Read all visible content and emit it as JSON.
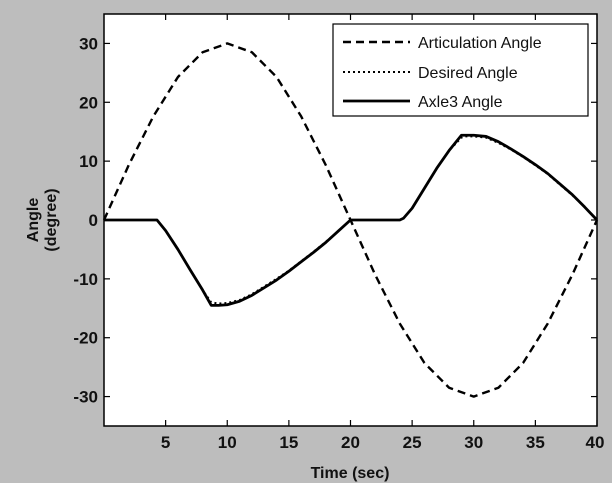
{
  "chart_data": {
    "type": "line",
    "xlabel": "Time (sec)",
    "ylabel": "Angle",
    "ylabel_unit": "(degree)",
    "xlim": [
      0,
      40
    ],
    "ylim": [
      -35,
      35
    ],
    "xticks": [
      5,
      10,
      15,
      20,
      25,
      30,
      35,
      40
    ],
    "yticks": [
      30,
      20,
      10,
      0,
      -10,
      -20,
      -30
    ],
    "grid": false,
    "legend_position": "top-right",
    "series": [
      {
        "name": "Articulation Angle",
        "style": "dashed",
        "color": "#000000",
        "x": [
          0,
          2,
          4,
          6,
          8,
          10,
          12,
          14,
          16,
          18,
          20,
          22,
          24,
          26,
          28,
          30,
          32,
          34,
          36,
          38,
          40
        ],
        "y": [
          0,
          9.3,
          17.6,
          24.3,
          28.5,
          30.0,
          28.5,
          24.3,
          17.6,
          9.3,
          0,
          -9.3,
          -17.6,
          -24.3,
          -28.5,
          -30.0,
          -28.5,
          -24.3,
          -17.6,
          -9.3,
          0
        ]
      },
      {
        "name": "Desired Angle",
        "style": "dotted",
        "color": "#000000",
        "x": [
          0,
          4.3,
          5,
          6,
          7,
          8,
          8.7,
          9.3,
          10,
          11,
          12,
          13,
          14,
          15,
          16,
          17,
          18,
          19,
          20,
          21,
          22,
          23,
          24,
          24.3,
          25,
          26,
          27,
          28,
          29,
          29.3,
          30,
          31,
          32,
          33,
          34,
          35,
          36,
          37,
          38,
          39,
          40
        ],
        "y": [
          0,
          0,
          -1.8,
          -5.0,
          -8.5,
          -11.9,
          -14.0,
          -14.2,
          -14.1,
          -13.6,
          -12.6,
          -11.3,
          -10.0,
          -8.6,
          -7.0,
          -5.4,
          -3.7,
          -1.9,
          0,
          0,
          0,
          0,
          0,
          0.3,
          2.0,
          5.4,
          8.8,
          11.8,
          14.0,
          14.2,
          14.2,
          14.0,
          13.1,
          12.0,
          10.7,
          9.3,
          7.8,
          6.0,
          4.2,
          2.2,
          0
        ]
      },
      {
        "name": "Axle3 Angle",
        "style": "solid",
        "color": "#000000",
        "x": [
          0,
          4.3,
          5,
          6,
          7,
          8,
          8.7,
          9.3,
          10,
          11,
          12,
          13,
          14,
          15,
          16,
          17,
          18,
          19,
          20,
          21,
          22,
          23,
          24,
          24.3,
          25,
          26,
          27,
          28,
          29,
          29.3,
          30,
          31,
          32,
          33,
          34,
          35,
          36,
          37,
          38,
          39,
          40
        ],
        "y": [
          0,
          0,
          -1.8,
          -5.0,
          -8.5,
          -11.9,
          -14.5,
          -14.5,
          -14.4,
          -13.8,
          -12.8,
          -11.5,
          -10.2,
          -8.7,
          -7.1,
          -5.5,
          -3.8,
          -1.9,
          0,
          0,
          0,
          0,
          0,
          0.3,
          2.0,
          5.4,
          8.8,
          11.8,
          14.4,
          14.4,
          14.4,
          14.2,
          13.3,
          12.1,
          10.8,
          9.4,
          7.9,
          6.1,
          4.3,
          2.2,
          0
        ]
      }
    ]
  }
}
